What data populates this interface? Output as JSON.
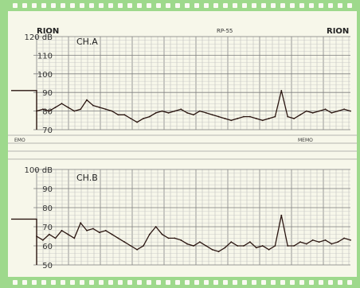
{
  "header": {
    "brand_left": "RION",
    "model": "RP-55",
    "brand_right": "RION"
  },
  "memo": {
    "left_label": "EMO",
    "right_label": "MEMO"
  },
  "colors": {
    "border_green": "#9ED98C",
    "paper": "#F7F7EA",
    "grid": "#9A9A9A",
    "trace": "#2A1510",
    "ink": "#222222"
  },
  "chart_data": [
    {
      "type": "line",
      "title": "CH.A",
      "unit": "dB",
      "ylim": [
        70,
        120
      ],
      "yticks": [
        "120 dB",
        "110",
        "100",
        "90",
        "80",
        "70"
      ],
      "grid": true,
      "calibration_level": 91,
      "series": [
        {
          "name": "",
          "x": [
            0,
            0.02,
            0.04,
            0.06,
            0.08,
            0.1,
            0.12,
            0.14,
            0.16,
            0.18,
            0.2,
            0.22,
            0.24,
            0.26,
            0.28,
            0.3,
            0.32,
            0.34,
            0.36,
            0.38,
            0.4,
            0.42,
            0.44,
            0.46,
            0.48,
            0.5,
            0.52,
            0.54,
            0.56,
            0.58,
            0.6,
            0.62,
            0.64,
            0.66,
            0.68,
            0.7,
            0.72,
            0.74,
            0.76,
            0.78,
            0.8,
            0.82,
            0.84,
            0.86,
            0.88,
            0.9,
            0.92,
            0.94,
            0.96,
            0.98,
            1.0
          ],
          "values": [
            80,
            81,
            80,
            82,
            84,
            82,
            80,
            81,
            86,
            83,
            82,
            81,
            80,
            78,
            78,
            76,
            74,
            76,
            77,
            79,
            80,
            79,
            80,
            81,
            79,
            78,
            80,
            79,
            78,
            77,
            76,
            75,
            76,
            77,
            77,
            76,
            75,
            76,
            77,
            91,
            77,
            76,
            78,
            80,
            79,
            80,
            81,
            79,
            80,
            81,
            80
          ]
        }
      ]
    },
    {
      "type": "line",
      "title": "CH.B",
      "unit": "dB",
      "ylim": [
        50,
        100
      ],
      "yticks": [
        "100 dB",
        "90",
        "80",
        "70",
        "60",
        "50"
      ],
      "grid": true,
      "calibration_level": 74,
      "series": [
        {
          "name": "",
          "x": [
            0,
            0.02,
            0.04,
            0.06,
            0.08,
            0.1,
            0.12,
            0.14,
            0.16,
            0.18,
            0.2,
            0.22,
            0.24,
            0.26,
            0.28,
            0.3,
            0.32,
            0.34,
            0.36,
            0.38,
            0.4,
            0.42,
            0.44,
            0.46,
            0.48,
            0.5,
            0.52,
            0.54,
            0.56,
            0.58,
            0.6,
            0.62,
            0.64,
            0.66,
            0.68,
            0.7,
            0.72,
            0.74,
            0.76,
            0.78,
            0.8,
            0.82,
            0.84,
            0.86,
            0.88,
            0.9,
            0.92,
            0.94,
            0.96,
            0.98,
            1.0
          ],
          "values": [
            65,
            63,
            66,
            64,
            68,
            66,
            64,
            72,
            68,
            69,
            67,
            68,
            66,
            64,
            62,
            60,
            58,
            60,
            66,
            70,
            66,
            64,
            64,
            63,
            61,
            60,
            62,
            60,
            58,
            57,
            59,
            62,
            60,
            60,
            62,
            59,
            60,
            58,
            60,
            76,
            60,
            60,
            62,
            61,
            63,
            62,
            63,
            61,
            62,
            64,
            63
          ]
        }
      ]
    }
  ]
}
